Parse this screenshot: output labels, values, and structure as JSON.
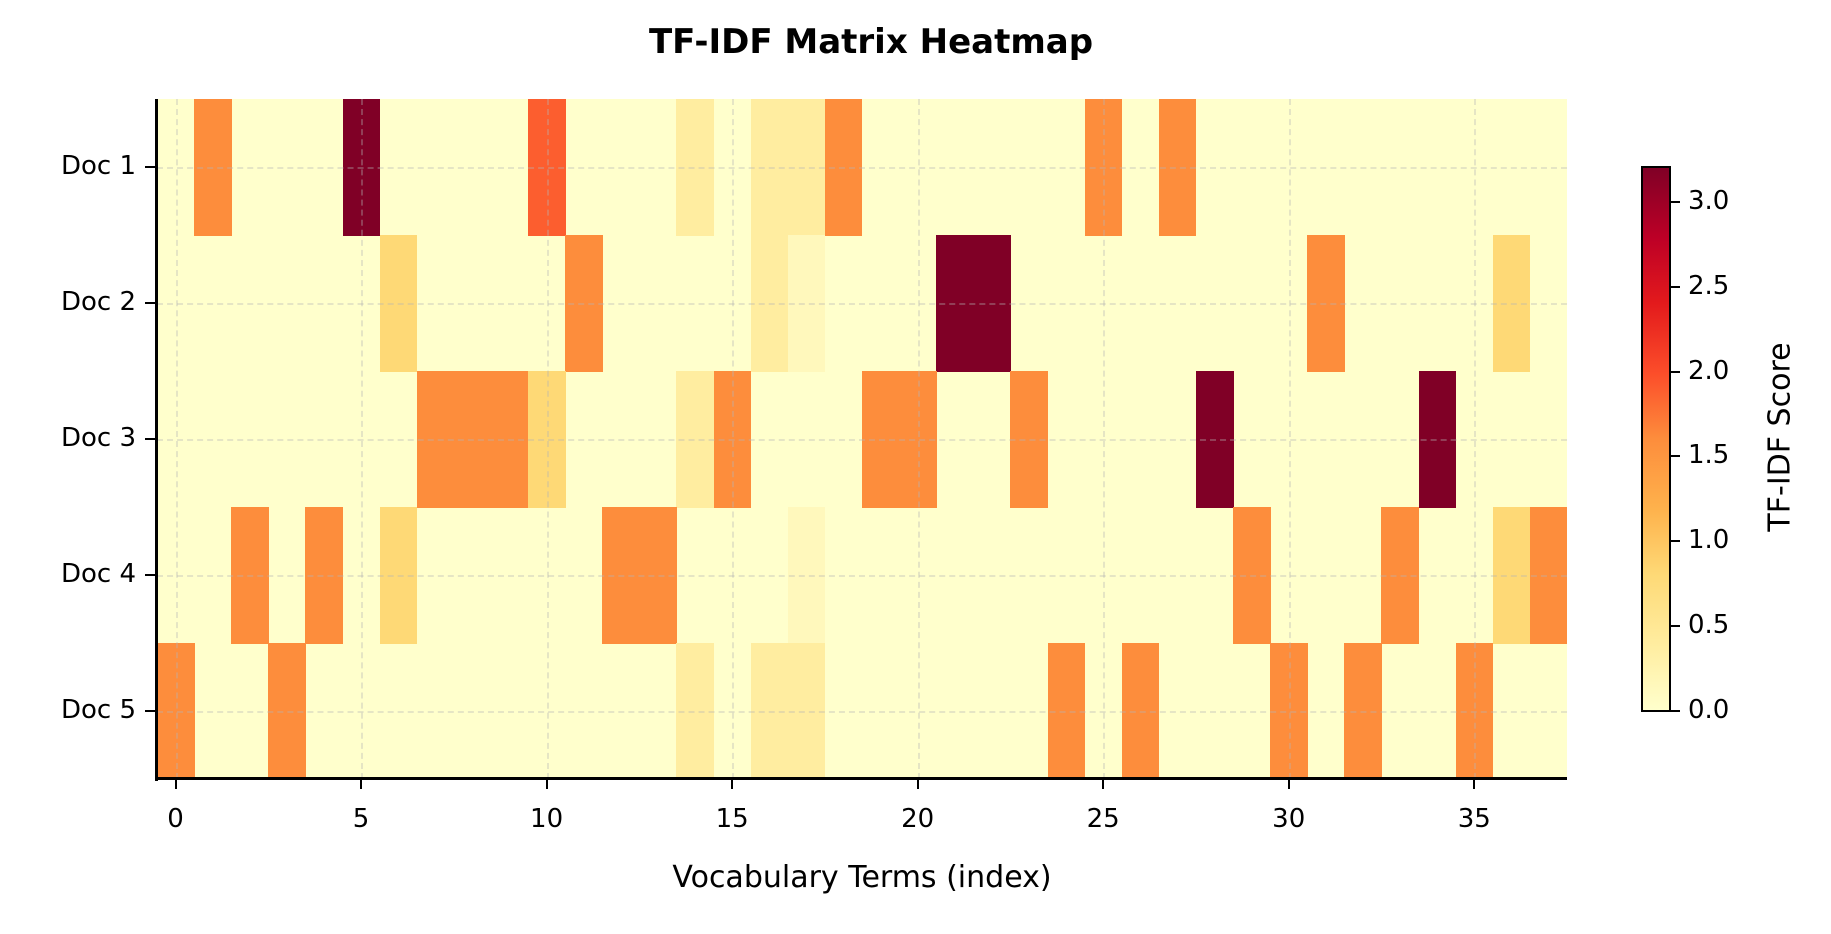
{
  "chart_data": {
    "type": "heatmap",
    "title": "TF-IDF Matrix Heatmap",
    "xlabel": "Vocabulary Terms (index)",
    "ylabel": "",
    "x_ticks": [
      0,
      5,
      10,
      15,
      20,
      25,
      30,
      35
    ],
    "x_range": [
      -0.5,
      37.5
    ],
    "rows": [
      "Doc 1",
      "Doc 2",
      "Doc 3",
      "Doc 4",
      "Doc 5"
    ],
    "n_columns": 38,
    "colormap": "YlOrRd",
    "colorbar": {
      "label": "TF-IDF Score",
      "ticks": [
        "0.0",
        "0.5",
        "1.0",
        "1.5",
        "2.0",
        "2.5",
        "3.0"
      ],
      "range": [
        0.0,
        3.2
      ]
    },
    "grid": true,
    "values": [
      [
        0,
        1.6,
        0,
        0,
        0,
        3.2,
        0,
        0,
        0,
        0,
        1.9,
        0,
        0,
        0,
        0.4,
        0,
        0.4,
        0.4,
        1.6,
        0,
        0,
        0,
        0,
        0,
        0,
        1.6,
        0,
        1.6,
        0,
        0,
        0,
        0,
        0,
        0,
        0,
        0,
        0,
        0
      ],
      [
        0,
        0,
        0,
        0,
        0,
        0,
        0.8,
        0,
        0,
        0,
        0,
        1.6,
        0,
        0,
        0,
        0,
        0.4,
        0.15,
        0,
        0,
        0,
        3.2,
        3.2,
        0,
        0,
        0,
        0,
        0,
        0,
        0,
        0,
        1.6,
        0,
        0,
        0,
        0,
        0.8,
        0
      ],
      [
        0,
        0,
        0,
        0,
        0,
        0,
        0,
        1.6,
        1.6,
        1.6,
        0.8,
        0,
        0,
        0,
        0.4,
        1.6,
        0,
        0,
        0,
        1.6,
        1.6,
        0,
        0,
        1.6,
        0,
        0,
        0,
        0,
        3.2,
        0,
        0,
        0,
        0,
        0,
        3.2,
        0,
        0,
        0
      ],
      [
        0,
        0,
        1.6,
        0,
        1.6,
        0,
        0.8,
        0,
        0,
        0,
        0,
        0,
        1.6,
        1.6,
        0,
        0,
        0,
        0.15,
        0,
        0,
        0,
        0,
        0,
        0,
        0,
        0,
        0,
        0,
        0,
        1.6,
        0,
        0,
        0,
        1.6,
        0,
        0,
        0.8,
        1.6
      ],
      [
        1.6,
        0,
        0,
        1.6,
        0,
        0,
        0,
        0,
        0,
        0,
        0,
        0,
        0,
        0,
        0.4,
        0,
        0.4,
        0.4,
        0,
        0,
        0,
        0,
        0,
        0,
        1.6,
        0,
        1.6,
        0,
        0,
        0,
        1.6,
        0,
        1.6,
        0,
        0,
        1.6,
        0,
        0
      ]
    ]
  },
  "colors": {
    "background": "#ffffcc",
    "max": "#800026",
    "orange": "#fd8d3c"
  }
}
